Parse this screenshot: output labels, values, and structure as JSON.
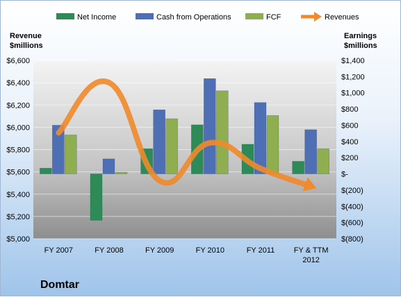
{
  "chart_data": {
    "type": "bar",
    "title": "Domtar",
    "categories": [
      [
        "FY 2007"
      ],
      [
        "FY 2008"
      ],
      [
        "FY 2009"
      ],
      [
        "FY 2010"
      ],
      [
        "FY 2011"
      ],
      [
        "FY & TTM",
        "2012"
      ]
    ],
    "left_axis": {
      "label": [
        "Revenue",
        "$millions"
      ],
      "range": [
        5000,
        6600
      ],
      "ticks": [
        "$5,000",
        "$5,200",
        "$5,400",
        "$5,600",
        "$5,800",
        "$6,000",
        "$6,200",
        "$6,400",
        "$6,600"
      ]
    },
    "right_axis": {
      "label": [
        "Earnings",
        "$millions"
      ],
      "range": [
        -800,
        1400
      ],
      "ticks": [
        "$(800)",
        "$(600)",
        "$(400)",
        "$(200)",
        "$-",
        "$200",
        "$400",
        "$600",
        "$800",
        "$1,000",
        "$1,200",
        "$1,400"
      ]
    },
    "series": [
      {
        "name": "Net Income",
        "type": "bar",
        "axis": "right",
        "color": "#2e8b57",
        "values": [
          70,
          -573,
          310,
          605,
          365,
          155
        ]
      },
      {
        "name": "Cash from Operations",
        "type": "bar",
        "axis": "right",
        "color": "#4f6fb5",
        "values": [
          600,
          185,
          790,
          1175,
          880,
          545
        ]
      },
      {
        "name": "FCF",
        "type": "bar",
        "axis": "right",
        "color": "#8fae4f",
        "values": [
          480,
          20,
          680,
          1025,
          720,
          310
        ]
      },
      {
        "name": "Revenues",
        "type": "line",
        "axis": "left",
        "color": "#f08a2c",
        "values": [
          5950,
          6400,
          5520,
          5860,
          5630,
          5470
        ]
      }
    ],
    "grid": true,
    "legend": "top"
  }
}
